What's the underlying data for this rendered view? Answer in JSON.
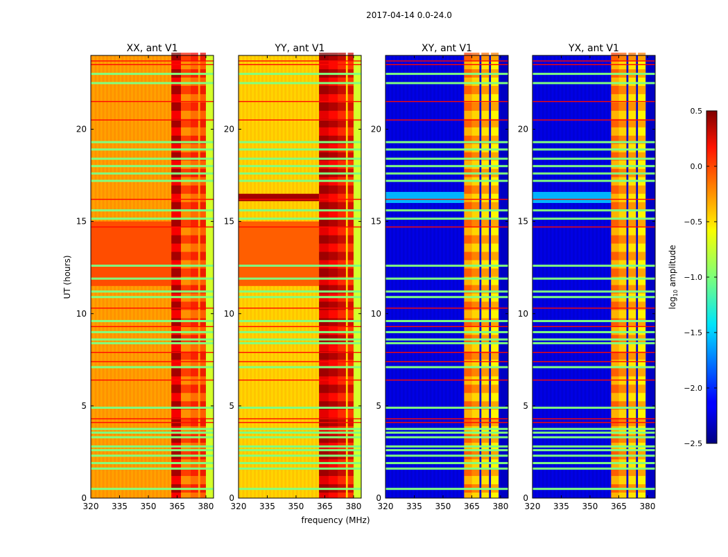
{
  "chart_data": {
    "type": "heatmap",
    "title": "2017-04-14 0.0-24.0",
    "xlabel": "frequency (MHz)",
    "ylabel": "UT (hours)",
    "xlim": [
      320,
      384
    ],
    "ylim": [
      0,
      24
    ],
    "xticks": [
      320,
      335,
      350,
      365,
      380
    ],
    "yticks": [
      0,
      5,
      10,
      15,
      20
    ],
    "colorbar": {
      "label_main": "log",
      "label_sub": "10",
      "label_rest": " amplitude",
      "colormap": "jet",
      "range": [
        -2.5,
        0.5
      ],
      "ticks": [
        0.5,
        0.0,
        -0.5,
        -1.0,
        -1.5,
        -2.0,
        -2.5
      ],
      "tick_labels": [
        "0.5",
        "0.0",
        "−0.5",
        "−1.0",
        "−1.5",
        "−2.0",
        "−2.5"
      ]
    },
    "panels": [
      {
        "title": "XX, ant V1",
        "base_level": -0.35,
        "edge_level": -0.75,
        "bright_periods": [
          {
            "from": 11.5,
            "to": 15,
            "level": -0.1
          }
        ],
        "rfi_bands": [
          {
            "from": 362,
            "to": 367,
            "level": 0.15
          },
          {
            "from": 367,
            "to": 372,
            "level": -0.3
          },
          {
            "from": 372,
            "to": 376,
            "level": -0.2
          },
          {
            "from": 377,
            "to": 380,
            "level": -0.15
          }
        ]
      },
      {
        "title": "YY, ant V1",
        "base_level": -0.5,
        "edge_level": -0.75,
        "bright_periods": [
          {
            "from": 11.5,
            "to": 15,
            "level": -0.15
          },
          {
            "from": 16.1,
            "to": 16.5,
            "level": 0.4
          }
        ],
        "rfi_bands": [
          {
            "from": 362,
            "to": 367,
            "level": 0.2
          },
          {
            "from": 367,
            "to": 372,
            "level": 0.1
          },
          {
            "from": 372,
            "to": 376,
            "level": 0.0
          },
          {
            "from": 377,
            "to": 380,
            "level": -0.05
          }
        ]
      },
      {
        "title": "XY, ant V1",
        "base_level": -2.25,
        "edge_level": -2.3,
        "bright_periods": [
          {
            "from": 16.0,
            "to": 16.6,
            "level": -1.6
          }
        ],
        "rfi_bands": [
          {
            "from": 361,
            "to": 365,
            "level": -0.4
          },
          {
            "from": 365,
            "to": 369,
            "level": -0.5
          },
          {
            "from": 370,
            "to": 374,
            "level": -0.55
          },
          {
            "from": 375,
            "to": 379,
            "level": -0.6
          }
        ]
      },
      {
        "title": "YX, ant V1",
        "base_level": -2.25,
        "edge_level": -2.3,
        "bright_periods": [
          {
            "from": 16.0,
            "to": 16.6,
            "level": -1.6
          }
        ],
        "rfi_bands": [
          {
            "from": 361,
            "to": 365,
            "level": -0.4
          },
          {
            "from": 365,
            "to": 369,
            "level": -0.5
          },
          {
            "from": 370,
            "to": 374,
            "level": -0.55
          },
          {
            "from": 375,
            "to": 379,
            "level": -0.6
          }
        ]
      }
    ],
    "flag_rows_green": [
      0.5,
      1.6,
      1.9,
      2.3,
      2.6,
      2.8,
      3.3,
      3.55,
      3.75,
      4.9,
      7.1,
      8.4,
      8.6,
      9.0,
      9.6,
      10.9,
      11.2,
      11.9,
      12.6,
      15.15,
      15.6,
      17.2,
      17.6,
      18.0,
      18.4,
      18.9,
      19.3,
      22.5,
      23.0
    ],
    "flag_rows_red": [
      4.1,
      4.3,
      6.4,
      7.4,
      7.9,
      9.3,
      10.3,
      14.7,
      16.2,
      20.5,
      21.5,
      23.5,
      23.7
    ]
  }
}
